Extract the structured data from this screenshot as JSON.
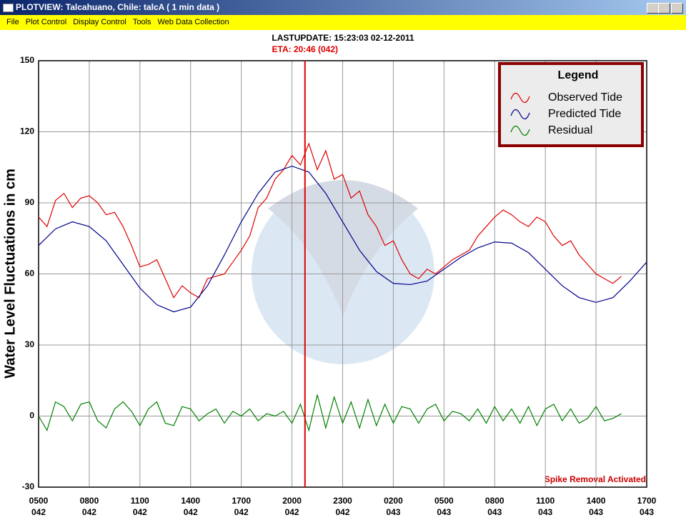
{
  "window": {
    "title": "PLOTVIEW:   Talcahuano, Chile: talcA ( 1 min data )",
    "menu": [
      "File",
      "Plot Control",
      "Display Control",
      "Tools",
      "Web Data Collection"
    ]
  },
  "chart_data": {
    "type": "line",
    "title": "LASTUPDATE: 15:23:03  02-12-2011",
    "y_label": "Water Level Fluctuations in cm",
    "annotation": "Spike Removal Activated",
    "eta_line": {
      "x": 15.77,
      "label": "ETA: 20:46 (042)",
      "color": "#e00000"
    },
    "legend_title": "Legend",
    "legend": "upper right",
    "grid": true,
    "xlim": [
      0,
      36
    ],
    "ylim": [
      -30,
      150
    ],
    "yticks": [
      -30,
      0,
      30,
      60,
      90,
      120,
      150
    ],
    "xticks": [
      {
        "value": 0,
        "label": "0500"
      },
      {
        "value": 3,
        "label": "0800"
      },
      {
        "value": 6,
        "label": "1100"
      },
      {
        "value": 9,
        "label": "1400"
      },
      {
        "value": 12,
        "label": "1700"
      },
      {
        "value": 15,
        "label": "2000"
      },
      {
        "value": 18,
        "label": "2300"
      },
      {
        "value": 21,
        "label": "0200"
      },
      {
        "value": 24,
        "label": "0500"
      },
      {
        "value": 27,
        "label": "0800"
      },
      {
        "value": 30,
        "label": "1100"
      },
      {
        "value": 33,
        "label": "1400"
      },
      {
        "value": 36,
        "label": "1700"
      }
    ],
    "xtick_days": [
      "042",
      "042",
      "042",
      "042",
      "042",
      "042",
      "042",
      "043",
      "043",
      "043",
      "043",
      "043",
      "043"
    ],
    "series": [
      {
        "name": "Observed Tide",
        "color": "#dd0000",
        "x": [
          0,
          0.5,
          1,
          1.5,
          2,
          2.5,
          3,
          3.5,
          4,
          4.5,
          5,
          5.5,
          6,
          6.5,
          7,
          7.5,
          8,
          8.5,
          9,
          9.5,
          10,
          10.5,
          11,
          11.5,
          12,
          12.5,
          13,
          13.5,
          14,
          14.5,
          15,
          15.5,
          16,
          16.5,
          17,
          17.5,
          18,
          18.5,
          19,
          19.5,
          20,
          20.5,
          21,
          21.5,
          22,
          22.5,
          23,
          23.5,
          24,
          24.5,
          25,
          25.5,
          26,
          26.5,
          27,
          27.5,
          28,
          28.5,
          29,
          29.5,
          30,
          30.5,
          31,
          31.5,
          32,
          32.5,
          33,
          33.5,
          34,
          34.5
        ],
        "values": [
          84,
          80,
          91,
          94,
          88,
          92,
          93,
          90,
          85,
          86,
          80,
          72,
          63,
          64,
          66,
          58,
          50,
          55,
          52,
          50,
          58,
          59,
          60,
          65,
          70,
          76,
          88,
          92,
          100,
          104,
          110,
          106,
          115,
          104,
          112,
          100,
          102,
          92,
          95,
          85,
          80,
          72,
          74,
          66,
          60,
          58,
          62,
          60,
          63,
          66,
          68,
          70,
          76,
          80,
          84,
          87,
          85,
          82,
          80,
          84,
          82,
          76,
          72,
          74,
          68,
          64,
          60,
          58,
          56,
          59
        ]
      },
      {
        "name": "Predicted Tide",
        "color": "#00008b",
        "x": [
          0,
          1,
          2,
          3,
          4,
          5,
          6,
          7,
          8,
          9,
          10,
          11,
          12,
          13,
          14,
          15,
          16,
          17,
          18,
          19,
          20,
          21,
          22,
          23,
          24,
          25,
          26,
          27,
          28,
          29,
          30,
          31,
          32,
          33,
          34,
          35,
          36
        ],
        "values": [
          72,
          79,
          82,
          80,
          74,
          64,
          54,
          47,
          44,
          46,
          55,
          68,
          82,
          94,
          103,
          105.5,
          103,
          94,
          82,
          70,
          61,
          56,
          55.5,
          57,
          62,
          67,
          71,
          73.5,
          73,
          69,
          62,
          55,
          50,
          48,
          50,
          57,
          65
        ]
      },
      {
        "name": "Residual",
        "color": "#008000",
        "x": [
          0,
          0.5,
          1,
          1.5,
          2,
          2.5,
          3,
          3.5,
          4,
          4.5,
          5,
          5.5,
          6,
          6.5,
          7,
          7.5,
          8,
          8.5,
          9,
          9.5,
          10,
          10.5,
          11,
          11.5,
          12,
          12.5,
          13,
          13.5,
          14,
          14.5,
          15,
          15.5,
          16,
          16.5,
          17,
          17.5,
          18,
          18.5,
          19,
          19.5,
          20,
          20.5,
          21,
          21.5,
          22,
          22.5,
          23,
          23.5,
          24,
          24.5,
          25,
          25.5,
          26,
          26.5,
          27,
          27.5,
          28,
          28.5,
          29,
          29.5,
          30,
          30.5,
          31,
          31.5,
          32,
          32.5,
          33,
          33.5,
          34,
          34.5
        ],
        "values": [
          0,
          -6,
          6,
          4,
          -2,
          5,
          6,
          -2,
          -5,
          3,
          6,
          2,
          -4,
          3,
          6,
          -3,
          -4,
          4,
          3,
          -2,
          1,
          3,
          -3,
          2,
          0,
          3,
          -2,
          1,
          0,
          2,
          -3,
          5,
          -6,
          9,
          -5,
          8,
          -3,
          6,
          -5,
          7,
          -4,
          5,
          -3,
          4,
          3,
          -3,
          3,
          5,
          -2,
          2,
          1,
          -2,
          3,
          -3,
          4,
          -2,
          3,
          -3,
          4,
          -4,
          3,
          5,
          -2,
          3,
          -3,
          -1,
          4,
          -2,
          -1,
          1
        ]
      }
    ]
  }
}
